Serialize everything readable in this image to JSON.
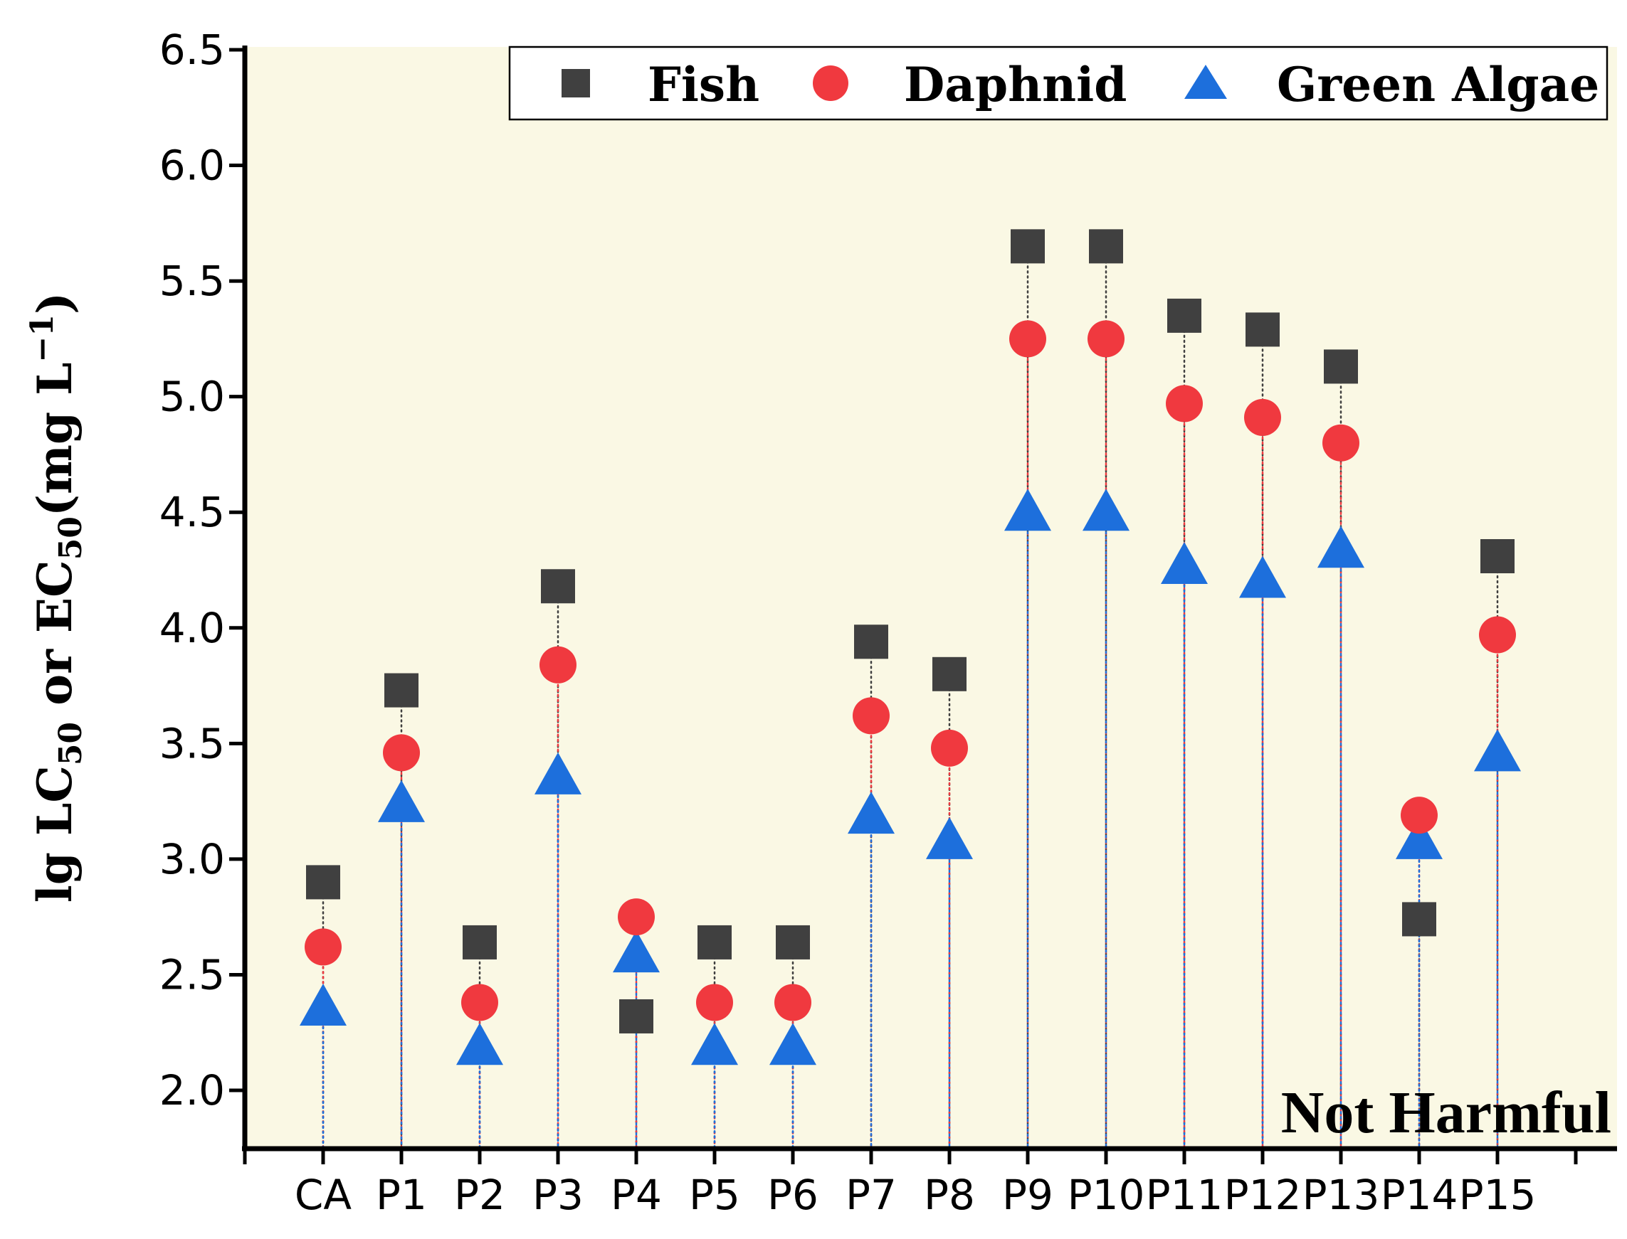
{
  "chart_data": {
    "type": "scatter",
    "title": "",
    "xlabel": "",
    "ylabel": {
      "part1": "lg LC",
      "sub1": "50",
      "part2": " or EC",
      "sub2": "50",
      "part3": "(mg L",
      "sup": "−1",
      "part4": ")"
    },
    "ylim": [
      1.75,
      6.5
    ],
    "yticks": [
      "2.0",
      "2.5",
      "3.0",
      "3.5",
      "4.0",
      "4.5",
      "5.0",
      "5.5",
      "6.0",
      "6.5"
    ],
    "ytick_values": [
      2.0,
      2.5,
      3.0,
      3.5,
      4.0,
      4.5,
      5.0,
      5.5,
      6.0,
      6.5
    ],
    "categories": [
      "CA",
      "P1",
      "P2",
      "P3",
      "P4",
      "P5",
      "P6",
      "P7",
      "P8",
      "P9",
      "P10",
      "P11",
      "P12",
      "P13",
      "P14",
      "P15"
    ],
    "series": [
      {
        "name": "Fish",
        "marker": "square",
        "color": "#404040",
        "values": [
          2.9,
          3.73,
          2.64,
          4.18,
          2.32,
          2.64,
          2.64,
          3.94,
          3.8,
          5.65,
          5.65,
          5.35,
          5.29,
          5.13,
          2.74,
          4.31
        ]
      },
      {
        "name": "Daphnid",
        "marker": "circle",
        "color": "#f0393f",
        "values": [
          2.62,
          3.46,
          2.38,
          3.84,
          2.75,
          2.38,
          2.38,
          3.62,
          3.48,
          5.25,
          5.25,
          4.97,
          4.91,
          4.8,
          3.19,
          3.97
        ]
      },
      {
        "name": "Green Algae",
        "marker": "triangle",
        "color": "#1d6fdc",
        "values": [
          2.36,
          3.24,
          2.19,
          3.36,
          2.59,
          2.19,
          2.19,
          3.19,
          3.08,
          4.5,
          4.5,
          4.27,
          4.21,
          4.34,
          3.08,
          3.46
        ]
      }
    ],
    "legend": {
      "position": "top-right",
      "entries": [
        "Fish",
        "Daphnid",
        "Green Algae"
      ]
    },
    "annotation": "Not Harmful",
    "plot_background": "#faf8e4",
    "grid": false
  }
}
